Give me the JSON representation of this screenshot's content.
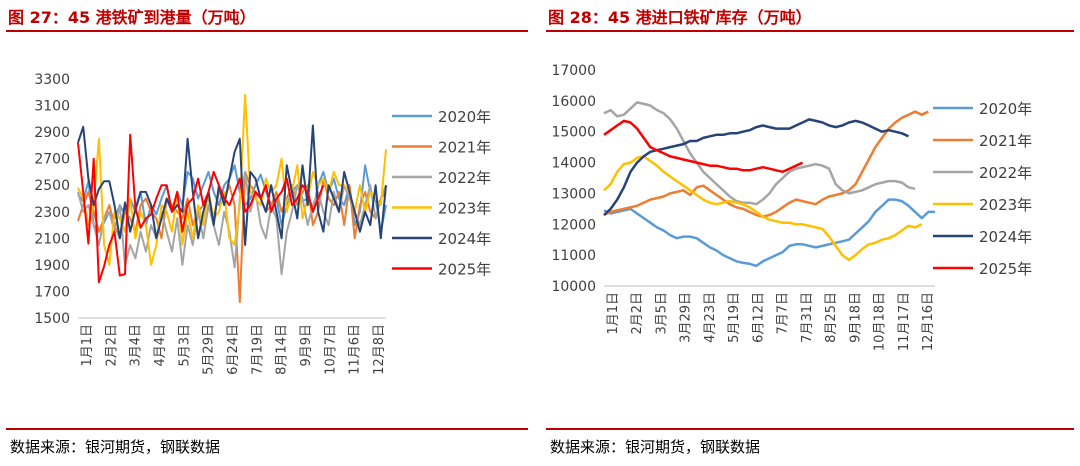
{
  "footer": {
    "left_source": "数据来源：银河期货，钢联数据",
    "right_source": "数据来源：银河期货，钢联数据"
  },
  "colors": {
    "accent": "#c00000",
    "s2020": "#5b9bd5",
    "s2021": "#ed7d31",
    "s2022": "#a5a5a5",
    "s2023": "#ffc000",
    "s2024": "#264478",
    "s2025": "#ff0000"
  },
  "chart_data": [
    {
      "type": "line",
      "title": "图 27：45 港铁矿到港量（万吨）",
      "xlabel": "",
      "ylabel": "",
      "ylim": [
        1500,
        3300
      ],
      "yticks": [
        1500,
        1700,
        1900,
        2100,
        2300,
        2500,
        2700,
        2900,
        3100,
        3300
      ],
      "x_tick_labels": [
        "1月1日",
        "2月2日",
        "3月4日",
        "4月4日",
        "5月3日",
        "5月29日",
        "6月24日",
        "7月19日",
        "8月14日",
        "9月9日",
        "10月7日",
        "11月6日",
        "12月8日"
      ],
      "legend_position": "right",
      "series": [
        {
          "name": "2020年",
          "values": [
            2430,
            2380,
            2530,
            2200,
            2150,
            2220,
            2300,
            2250,
            2350,
            2280,
            2400,
            2300,
            2450,
            2200,
            2350,
            2280,
            2400,
            2500,
            2300,
            2450,
            2350,
            2600,
            2550,
            2400,
            2500,
            2600,
            2450,
            2350,
            2500,
            2550,
            2650,
            2450,
            2350,
            2400,
            2500,
            2580,
            2450,
            2350,
            2400,
            2200,
            2350,
            2450,
            2500,
            2380,
            2400,
            2300,
            2500,
            2600,
            2450,
            2550,
            2400,
            2350,
            2500,
            2200,
            2300,
            2650,
            2450,
            2400,
            2150,
            2350
          ]
        },
        {
          "name": "2021年",
          "values": [
            2230,
            2350,
            2450,
            2300,
            2150,
            2250,
            2350,
            2200,
            2100,
            2300,
            2250,
            2150,
            2350,
            2400,
            2300,
            2250,
            2100,
            2400,
            2350,
            2300,
            2250,
            2400,
            2200,
            2300,
            2350,
            2400,
            2250,
            2450,
            2400,
            2500,
            2350,
            1620,
            2600,
            2500,
            2450,
            2400,
            2300,
            2350,
            2450,
            2300,
            2400,
            2500,
            2350,
            2450,
            2500,
            2200,
            2300,
            2550,
            2400,
            2350,
            2450,
            2200,
            2500,
            2100,
            2350,
            2450,
            2300,
            2250,
            2400,
            2450
          ]
        },
        {
          "name": "2022年",
          "values": [
            2450,
            2300,
            2350,
            2200,
            2050,
            2250,
            2300,
            2150,
            2350,
            1900,
            2050,
            1950,
            2150,
            2000,
            2200,
            2100,
            2300,
            2150,
            2000,
            2250,
            1900,
            2200,
            2050,
            2300,
            2100,
            2350,
            2200,
            2050,
            2300,
            2150,
            1880,
            2400,
            2600,
            2300,
            2450,
            2200,
            2100,
            2350,
            2250,
            1830,
            2150,
            2300,
            2500,
            2400,
            2200,
            2350,
            2450,
            2300,
            2200,
            2450,
            2300,
            2500,
            2400,
            2300,
            2200,
            2350,
            2500,
            2250,
            2400,
            2500
          ]
        },
        {
          "name": "2023年",
          "values": [
            2480,
            2400,
            2200,
            2350,
            2850,
            2050,
            1900,
            2300,
            2250,
            2150,
            2400,
            2100,
            2300,
            2200,
            1900,
            2050,
            2350,
            2300,
            2150,
            2450,
            2050,
            2300,
            2100,
            2350,
            2200,
            2450,
            2250,
            2300,
            2450,
            2100,
            2050,
            2350,
            3180,
            2450,
            2400,
            2350,
            2550,
            2450,
            2500,
            2700,
            2300,
            2450,
            2650,
            2250,
            2400,
            2600,
            2500,
            2550,
            2450,
            2600,
            2500,
            2500,
            2450,
            2300,
            2500,
            2300,
            2450,
            2400,
            2350,
            2770
          ]
        },
        {
          "name": "2024年",
          "values": [
            2820,
            2940,
            2550,
            2350,
            2470,
            2530,
            2530,
            2350,
            2100,
            2370,
            2150,
            2320,
            2450,
            2450,
            2350,
            2100,
            2250,
            2400,
            2300,
            2350,
            2300,
            2850,
            2450,
            2100,
            2300,
            2450,
            2200,
            2500,
            2350,
            2550,
            2750,
            2850,
            2050,
            2600,
            2550,
            2400,
            2300,
            2500,
            2300,
            2100,
            2650,
            2450,
            2250,
            2650,
            2350,
            2950,
            2300,
            2150,
            2500,
            2400,
            2300,
            2600,
            2450,
            2300,
            2150,
            2300,
            2200,
            2500,
            2100,
            2500
          ]
        },
        {
          "name": "2025年",
          "values": [
            2820,
            2450,
            2060,
            2700,
            1770,
            1890,
            2050,
            2150,
            1820,
            1830,
            2880,
            2330,
            2180,
            2250,
            2280,
            2400,
            2500,
            2500,
            2300,
            2450,
            2150,
            2360,
            2400,
            2550,
            2350,
            2450,
            2600,
            2500,
            2400,
            2350,
            2450,
            2550,
            2300,
            2350,
            2450,
            2400,
            2500,
            2300,
            2400,
            2450,
            2550,
            2350,
            2400,
            2500,
            2450,
            2300,
            2400,
            2500
          ]
        }
      ]
    },
    {
      "type": "line",
      "title": "图 28：45 港进口铁矿库存（万吨）",
      "xlabel": "",
      "ylabel": "",
      "ylim": [
        10000,
        17000
      ],
      "yticks": [
        10000,
        11000,
        12000,
        13000,
        14000,
        15000,
        16000,
        17000
      ],
      "x_tick_labels": [
        "1月1日",
        "2月2日",
        "3月5日",
        "3月29日",
        "4月23日",
        "5月19日",
        "6月12日",
        "7月7日",
        "7月31日",
        "8月25日",
        "9月18日",
        "10月18日",
        "11月17日",
        "12月16日"
      ],
      "legend_position": "right",
      "series": [
        {
          "name": "2020年",
          "values": [
            12450,
            12350,
            12400,
            12450,
            12500,
            12350,
            12200,
            12050,
            11900,
            11800,
            11650,
            11550,
            11600,
            11600,
            11550,
            11400,
            11250,
            11150,
            11000,
            10900,
            10800,
            10750,
            10720,
            10650,
            10800,
            10900,
            11000,
            11100,
            11300,
            11350,
            11350,
            11300,
            11250,
            11300,
            11350,
            11400,
            11450,
            11500,
            11700,
            11900,
            12100,
            12400,
            12600,
            12800,
            12800,
            12750,
            12600,
            12400,
            12200,
            12400,
            12400
          ]
        },
        {
          "name": "2021年",
          "values": [
            12300,
            12400,
            12450,
            12500,
            12550,
            12600,
            12700,
            12800,
            12850,
            12900,
            13000,
            13050,
            13100,
            12950,
            13200,
            13250,
            13100,
            12950,
            12800,
            12650,
            12550,
            12500,
            12400,
            12300,
            12250,
            12300,
            12400,
            12550,
            12700,
            12800,
            12750,
            12700,
            12650,
            12800,
            12900,
            12950,
            13000,
            13100,
            13300,
            13700,
            14100,
            14500,
            14800,
            15100,
            15300,
            15450,
            15550,
            15650,
            15550,
            15650
          ]
        },
        {
          "name": "2022年",
          "values": [
            15600,
            15700,
            15500,
            15550,
            15750,
            15950,
            15900,
            15850,
            15700,
            15600,
            15400,
            15100,
            14700,
            14300,
            14000,
            13700,
            13500,
            13300,
            13100,
            12900,
            12750,
            12700,
            12700,
            12650,
            12800,
            13000,
            13300,
            13500,
            13700,
            13800,
            13850,
            13900,
            13950,
            13900,
            13800,
            13300,
            13100,
            13000,
            13050,
            13100,
            13200,
            13300,
            13350,
            13400,
            13400,
            13350,
            13200,
            13150
          ]
        },
        {
          "name": "2023年",
          "values": [
            13100,
            13300,
            13700,
            13950,
            14000,
            14150,
            14200,
            14050,
            13900,
            13700,
            13550,
            13400,
            13250,
            13100,
            12950,
            12800,
            12700,
            12650,
            12700,
            12750,
            12700,
            12650,
            12550,
            12400,
            12250,
            12150,
            12100,
            12050,
            12050,
            12000,
            12000,
            11950,
            11900,
            11850,
            11600,
            11300,
            11000,
            10850,
            11000,
            11200,
            11350,
            11400,
            11500,
            11550,
            11650,
            11800,
            11950,
            11900,
            12000
          ]
        },
        {
          "name": "2024年",
          "values": [
            12300,
            12500,
            12800,
            13200,
            13700,
            14000,
            14200,
            14350,
            14400,
            14450,
            14500,
            14550,
            14600,
            14700,
            14700,
            14800,
            14850,
            14900,
            14900,
            14950,
            14950,
            15000,
            15050,
            15150,
            15200,
            15150,
            15100,
            15100,
            15100,
            15200,
            15300,
            15400,
            15350,
            15300,
            15200,
            15150,
            15200,
            15300,
            15350,
            15300,
            15200,
            15100,
            15000,
            15050,
            15000,
            14950,
            14850
          ]
        },
        {
          "name": "2025年",
          "values": [
            14900,
            15050,
            15200,
            15350,
            15300,
            15100,
            14800,
            14500,
            14400,
            14300,
            14200,
            14150,
            14100,
            14050,
            14000,
            13950,
            13900,
            13900,
            13850,
            13800,
            13800,
            13750,
            13750,
            13800,
            13850,
            13800,
            13750,
            13700,
            13800,
            13900,
            14000
          ]
        }
      ]
    }
  ]
}
